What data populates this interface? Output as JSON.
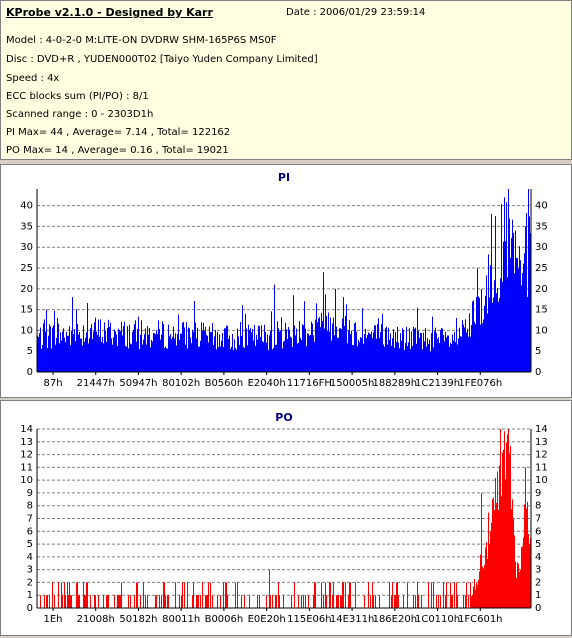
{
  "header": {
    "title": "KProbe v2.1.0 - Designed by Karr",
    "date": "Date : 2006/01/29 23:59:14",
    "lines": [
      "Model : 4-0-2-0 M:LITE-ON DVDRW SHM-165P6S MS0F",
      "Disc : DVD+R , YUDEN000T02 [Taiyo Yuden Company Limited]",
      "Speed : 4x",
      "ECC blocks sum (PI/PO) : 8/1",
      "Scanned range : 0 - 2303D1h",
      "PI Max= 44 , Average= 7.14 , Total= 122162",
      "PO Max= 14 , Average= 0.16 , Total= 19021"
    ]
  },
  "chart_data": [
    {
      "type": "bar",
      "title": "PI",
      "color": "#0000ff",
      "ylim": [
        0,
        44
      ],
      "yticks": [
        0,
        5,
        10,
        15,
        20,
        25,
        30,
        35,
        40
      ],
      "x_tick_labels": [
        "87h",
        "21447h",
        "50947h",
        "80102h",
        "B0560h",
        "E2040h",
        "11716FH",
        "150005h",
        "188289h",
        "1C2139h",
        "1FE076h"
      ],
      "profile": [
        [
          0,
          9
        ],
        [
          0.03,
          10
        ],
        [
          0.06,
          10
        ],
        [
          0.1,
          11
        ],
        [
          0.2,
          10
        ],
        [
          0.3,
          10
        ],
        [
          0.4,
          9
        ],
        [
          0.5,
          10
        ],
        [
          0.58,
          12
        ],
        [
          0.6,
          14
        ],
        [
          0.62,
          12
        ],
        [
          0.66,
          10
        ],
        [
          0.75,
          9
        ],
        [
          0.8,
          9
        ],
        [
          0.85,
          8
        ],
        [
          0.88,
          13
        ],
        [
          0.9,
          18
        ],
        [
          0.92,
          25
        ],
        [
          0.94,
          32
        ],
        [
          0.95,
          36
        ],
        [
          0.96,
          33
        ],
        [
          0.97,
          26
        ],
        [
          0.98,
          28
        ],
        [
          0.99,
          31
        ],
        [
          1.0,
          30
        ]
      ],
      "spikes": [
        [
          0.018,
          15
        ],
        [
          0.04,
          13
        ],
        [
          0.07,
          18
        ],
        [
          0.48,
          21
        ],
        [
          0.58,
          24
        ],
        [
          0.604,
          20
        ],
        [
          0.62,
          18
        ],
        [
          0.7,
          14
        ],
        [
          0.85,
          13
        ],
        [
          0.92,
          38
        ],
        [
          0.947,
          42
        ],
        [
          0.955,
          44
        ],
        [
          0.97,
          34
        ],
        [
          0.99,
          35
        ]
      ]
    },
    {
      "type": "bar",
      "title": "PO",
      "color": "#ff0000",
      "ylim": [
        0,
        14
      ],
      "yticks": [
        0,
        1,
        2,
        3,
        4,
        5,
        6,
        7,
        8,
        9,
        10,
        11,
        12,
        13,
        14
      ],
      "x_tick_labels": [
        "1Eh",
        "21008h",
        "50182h",
        "80011h",
        "B0006h",
        "E0E20h",
        "115E06h",
        "14E311h",
        "186E20h",
        "1C0110h",
        "1FC601h"
      ],
      "profile": [
        [
          0,
          0.3
        ],
        [
          0.85,
          0.3
        ],
        [
          0.88,
          1
        ],
        [
          0.9,
          4
        ],
        [
          0.92,
          7
        ],
        [
          0.94,
          11
        ],
        [
          0.95,
          13
        ],
        [
          0.96,
          12
        ],
        [
          0.965,
          8
        ],
        [
          0.97,
          4
        ],
        [
          0.975,
          3
        ],
        [
          0.98,
          5
        ],
        [
          0.99,
          8
        ],
        [
          1.0,
          7
        ]
      ],
      "spikes": [
        [
          0.03,
          2
        ],
        [
          0.1,
          2
        ],
        [
          0.2,
          2
        ],
        [
          0.35,
          2
        ],
        [
          0.47,
          3
        ],
        [
          0.6,
          2
        ],
        [
          0.68,
          2
        ],
        [
          0.72,
          2
        ],
        [
          0.8,
          2
        ],
        [
          0.9,
          9
        ],
        [
          0.94,
          14
        ],
        [
          0.955,
          14
        ],
        [
          0.99,
          11
        ]
      ]
    }
  ]
}
